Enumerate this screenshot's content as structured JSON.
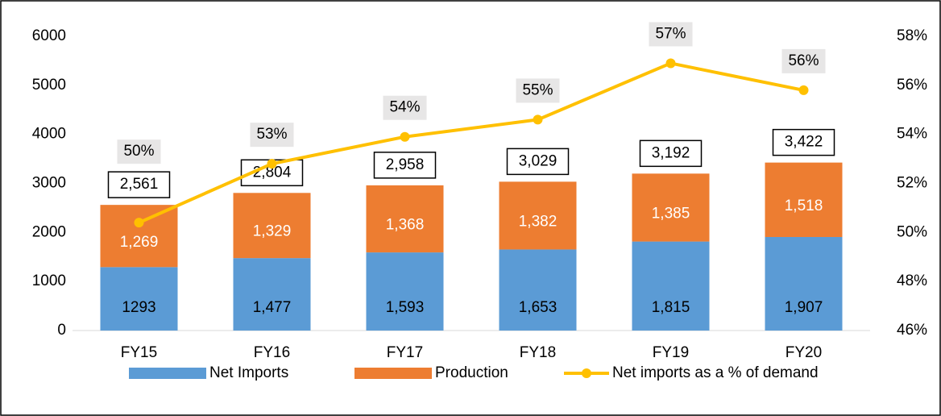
{
  "chart_data": {
    "type": "stacked-bar-line",
    "categories": [
      "FY15",
      "FY16",
      "FY17",
      "FY18",
      "FY19",
      "FY20"
    ],
    "series": [
      {
        "name": "Net Imports",
        "color": "#5b9bd5",
        "type": "bar",
        "values": [
          1293,
          1477,
          1593,
          1653,
          1815,
          1907
        ],
        "value_labels": [
          "1293",
          "1,477",
          "1,593",
          "1,653",
          "1,815",
          "1,907"
        ]
      },
      {
        "name": "Production",
        "color": "#ed7d31",
        "type": "bar",
        "values": [
          1269,
          1329,
          1368,
          1382,
          1385,
          1518
        ],
        "value_labels": [
          "1,269",
          "1,329",
          "1,368",
          "1,382",
          "1,385",
          "1,518"
        ]
      },
      {
        "name": "Net imports as a % of demand",
        "color": "#ffc000",
        "type": "line",
        "axis": "y2",
        "values": [
          50.4,
          52.8,
          53.9,
          54.6,
          56.9,
          55.8
        ],
        "value_labels": [
          "50%",
          "53%",
          "54%",
          "55%",
          "57%",
          "56%"
        ]
      }
    ],
    "totals": {
      "values": [
        2561,
        2804,
        2958,
        3029,
        3192,
        3422
      ],
      "value_labels": [
        "2,561",
        "2,804",
        "2,958",
        "3,029",
        "3,192",
        "3,422"
      ]
    },
    "ylim": [
      0,
      6000
    ],
    "yticks": [
      0,
      1000,
      2000,
      3000,
      4000,
      5000,
      6000
    ],
    "y2lim": [
      46,
      58
    ],
    "y2ticks": [
      {
        "value": 46,
        "label": "46%"
      },
      {
        "value": 48,
        "label": "48%"
      },
      {
        "value": 50,
        "label": "50%"
      },
      {
        "value": 52,
        "label": "52%"
      },
      {
        "value": 54,
        "label": "54%"
      },
      {
        "value": 56,
        "label": "56%"
      },
      {
        "value": 58,
        "label": "58%"
      }
    ],
    "grid": false,
    "legend": "bottom"
  }
}
